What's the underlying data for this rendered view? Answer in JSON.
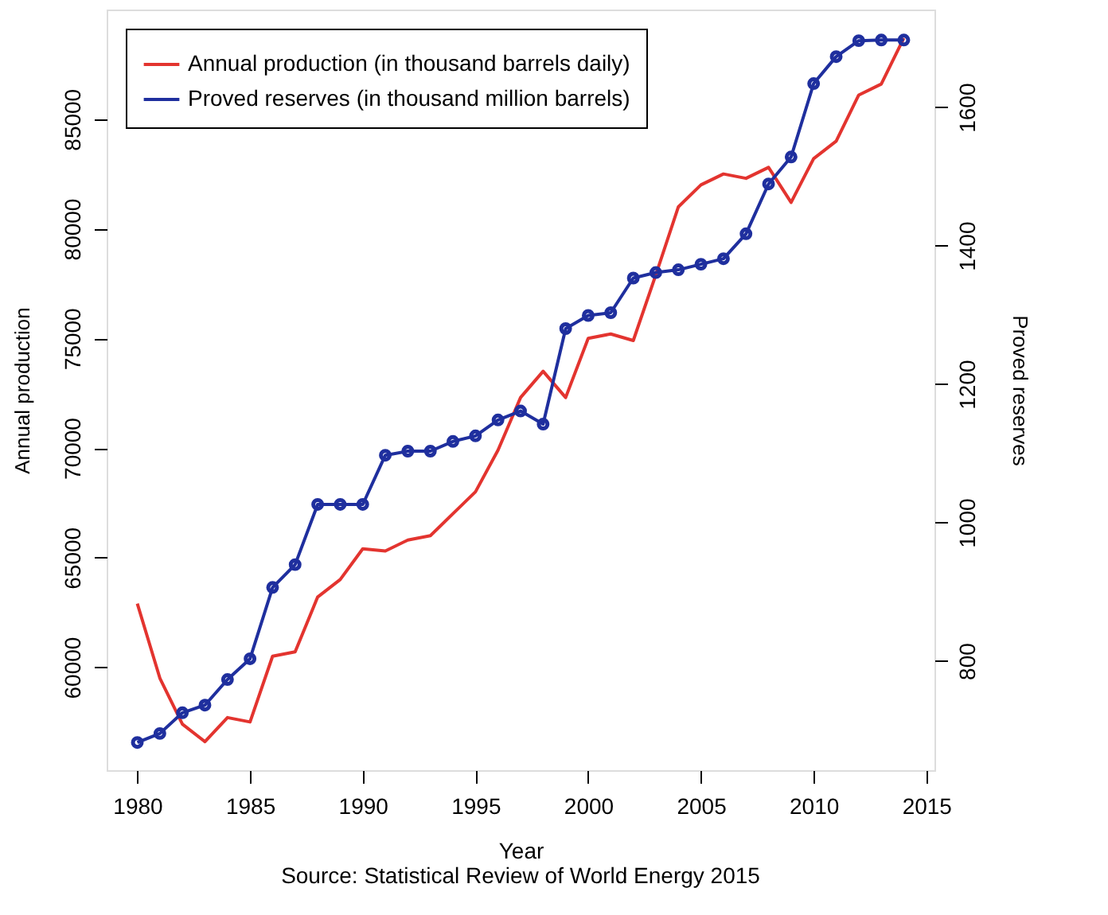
{
  "chart_data": {
    "type": "line",
    "xlabel": "Year",
    "ylabel": "Annual production",
    "y2label": "Proved reserves",
    "annotations": [
      "Source: Statistical Review of World Energy 2015"
    ],
    "x": [
      1980,
      1981,
      1982,
      1983,
      1984,
      1985,
      1986,
      1987,
      1988,
      1989,
      1990,
      1991,
      1992,
      1993,
      1994,
      1995,
      1996,
      1997,
      1998,
      1999,
      2000,
      2001,
      2002,
      2003,
      2004,
      2005,
      2006,
      2007,
      2008,
      2009,
      2010,
      2011,
      2012,
      2013,
      2014
    ],
    "series": [
      {
        "name": "Annual production (in thousand barrels daily)",
        "color": "#e3342f",
        "marker": "none",
        "values": [
          62900,
          59500,
          57400,
          56600,
          57700,
          57500,
          60500,
          60700,
          63200,
          64000,
          65400,
          65300,
          65800,
          66000,
          67000,
          68000,
          69900,
          72300,
          73500,
          72300,
          75000,
          75200,
          74900,
          77900,
          81000,
          82000,
          82500,
          82300,
          82800,
          81200,
          83200,
          84000,
          86100,
          86600,
          88700
        ]
      },
      {
        "name": "Proved reserves (in thousand million barrels)",
        "color": "#1f2f9e",
        "marker": "circle",
        "axis": "y2",
        "values": [
          682,
          695,
          725,
          736,
          773,
          803,
          906,
          939,
          1026,
          1026,
          1026,
          1097,
          1103,
          1103,
          1117,
          1125,
          1148,
          1161,
          1142,
          1280,
          1299,
          1303,
          1353,
          1361,
          1365,
          1373,
          1381,
          1417,
          1489,
          1528,
          1634,
          1673,
          1696,
          1697,
          1697
        ]
      }
    ],
    "xlim": [
      1978.64,
      2015.36
    ],
    "xticks": [
      1980,
      1985,
      1990,
      1995,
      2000,
      2005,
      2010,
      2015
    ],
    "ylim": [
      55300,
      90000
    ],
    "yticks": [
      60000,
      65000,
      70000,
      75000,
      80000,
      85000
    ],
    "y2lim": [
      642,
      1741
    ],
    "y2ticks": [
      800,
      1000,
      1200,
      1400,
      1600
    ],
    "grid": false,
    "legend": "top left",
    "line_style": "solid"
  }
}
